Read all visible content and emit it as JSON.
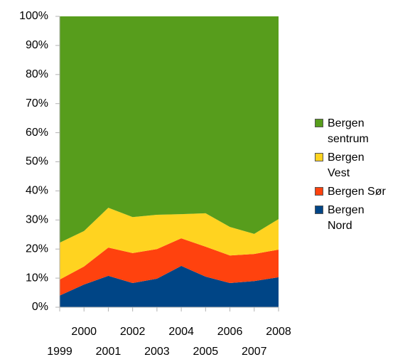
{
  "chart_data": {
    "type": "stacked_area_percent",
    "x": [
      1999,
      2000,
      2001,
      2002,
      2003,
      2004,
      2005,
      2006,
      2007,
      2008
    ],
    "series": [
      {
        "name": "Bergen Nord",
        "color": "#004586",
        "values": [
          4,
          7.8,
          10.8,
          8.3,
          9.8,
          14.2,
          10.5,
          8.3,
          9,
          10.3
        ]
      },
      {
        "name": "Bergen Sør",
        "color": "#ff420e",
        "values": [
          5.5,
          6.2,
          9.7,
          10.3,
          10.2,
          9.5,
          10.3,
          9.5,
          9.3,
          9.5
        ]
      },
      {
        "name": "Bergen Vest",
        "color": "#ffd320",
        "values": [
          12.7,
          12.2,
          13.7,
          12.4,
          11.8,
          8.3,
          11.5,
          9.8,
          6.9,
          10.5
        ]
      },
      {
        "name": "Bergen sentrum",
        "color": "#579d1c",
        "values": [
          77.8,
          73.8,
          65.8,
          69,
          68.2,
          68,
          67.7,
          72.4,
          74.8,
          69.7
        ]
      }
    ],
    "xlim": [
      1999,
      2008
    ],
    "xticks": [
      1999,
      2000,
      2001,
      2002,
      2003,
      2004,
      2005,
      2006,
      2007,
      2008
    ],
    "ylim": [
      0,
      100
    ],
    "yticks": [
      {
        "value": 0,
        "label": "0%"
      },
      {
        "value": 10,
        "label": "10%"
      },
      {
        "value": 20,
        "label": "20%"
      },
      {
        "value": 30,
        "label": "30%"
      },
      {
        "value": 40,
        "label": "40%"
      },
      {
        "value": 50,
        "label": "50%"
      },
      {
        "value": 60,
        "label": "60%"
      },
      {
        "value": 70,
        "label": "70%"
      },
      {
        "value": 80,
        "label": "80%"
      },
      {
        "value": 90,
        "label": "90%"
      },
      {
        "value": 100,
        "label": "100%"
      }
    ],
    "legend": "right"
  }
}
